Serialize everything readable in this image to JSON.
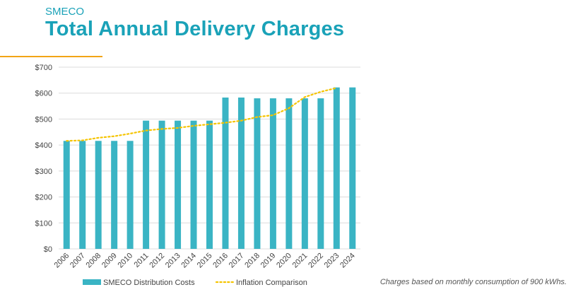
{
  "header": {
    "subtitle": "SMECO",
    "title": "Total Annual Delivery Charges"
  },
  "footnote": "Charges based on monthly consumption of 900 kWhs.",
  "colors": {
    "title": "#1aa2b8",
    "bars": "#3ab4c4",
    "inflation": "#f5c400",
    "rule": "#f2a516"
  },
  "chart_data": {
    "type": "bar",
    "categories": [
      "2006",
      "2007",
      "2008",
      "2009",
      "2010",
      "2011",
      "2012",
      "2013",
      "2014",
      "2015",
      "2016",
      "2017",
      "2018",
      "2019",
      "2020",
      "2021",
      "2022",
      "2023",
      "2024"
    ],
    "series": [
      {
        "name": "SMECO Distribution Costs",
        "type": "bar",
        "values": [
          416,
          416,
          416,
          416,
          416,
          494,
          494,
          494,
          494,
          494,
          583,
          583,
          580,
          580,
          580,
          580,
          580,
          622,
          622
        ]
      },
      {
        "name": "Inflation Comparison",
        "type": "line",
        "style": "dotted",
        "values": [
          416,
          418,
          428,
          434,
          444,
          456,
          462,
          466,
          474,
          480,
          486,
          494,
          508,
          515,
          542,
          585,
          605,
          620,
          null
        ]
      }
    ],
    "ylim": [
      0,
      700
    ],
    "y_ticks": [
      "$0",
      "$100",
      "$200",
      "$300",
      "$400",
      "$500",
      "$600",
      "$700"
    ],
    "y_tick_values": [
      0,
      100,
      200,
      300,
      400,
      500,
      600,
      700
    ],
    "grid": "horizontal",
    "legend_position": "bottom"
  }
}
